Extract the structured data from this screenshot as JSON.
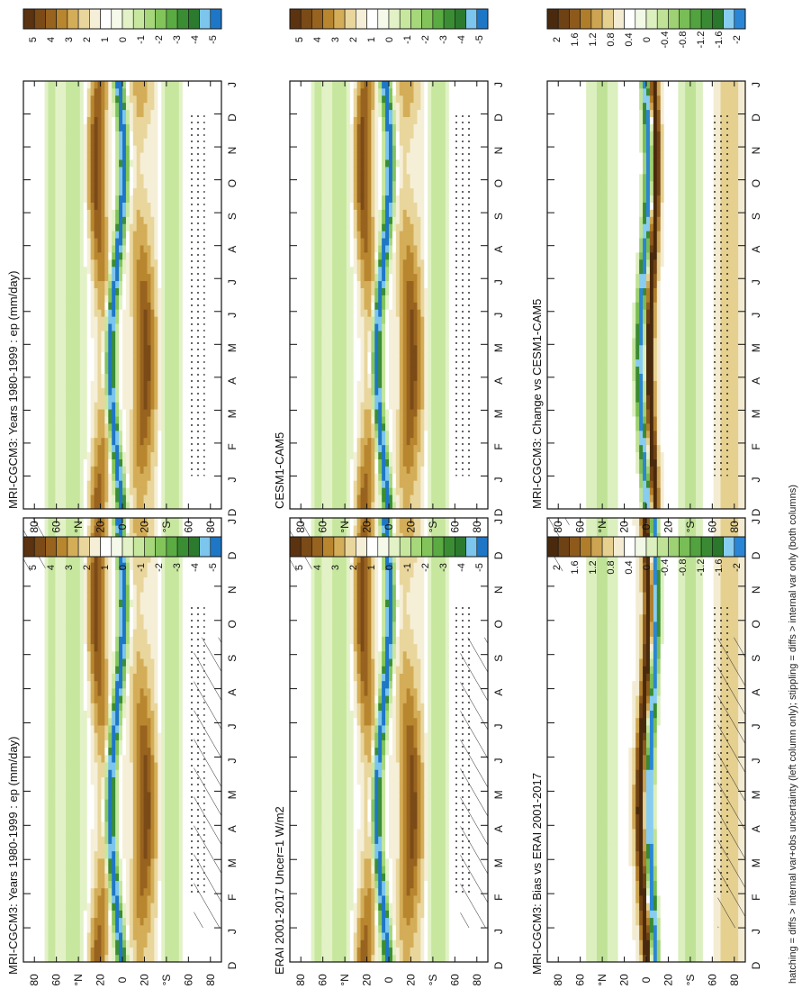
{
  "footnote": "hatching = diffs > internal var+obs uncertainty (left column only); stippling = diffs > internal var only (both columns)",
  "month_labels": [
    "D",
    "J",
    "F",
    "M",
    "A",
    "M",
    "J",
    "J",
    "A",
    "S",
    "O",
    "N",
    "D",
    "J"
  ],
  "lat_labels": [
    "80",
    "60",
    "°N",
    "20",
    "0",
    "20",
    "°S",
    "60",
    "80"
  ],
  "colorbars": {
    "field": {
      "labels": [
        "5",
        "4",
        "3",
        "2",
        "1",
        "0",
        "-1",
        "-2",
        "-3",
        "-4",
        "-5"
      ]
    },
    "diff": {
      "labels": [
        "2",
        "1.6",
        "1.2",
        "0.8",
        "0.4",
        "0",
        "-0.4",
        "-0.8",
        "-1.2",
        "-1.6",
        "-2"
      ]
    }
  },
  "panels": [
    {
      "title": "MRI-CGCM3: Years 1980-1999 : ep (mm/day)",
      "colorbar": "field"
    },
    {
      "title": "MRI-CGCM3: Years 1980-1999 : ep (mm/day)",
      "colorbar": "field"
    },
    {
      "title": "ERAI 2001-2017 Uncer=1 W/m2",
      "colorbar": "field"
    },
    {
      "title": "CESM1-CAM5",
      "colorbar": "field"
    },
    {
      "title": "MRI-CGCM3: Bias vs ERAI 2001-2017",
      "colorbar": "diff"
    },
    {
      "title": "MRI-CGCM3: Change vs CESM1-CAM5",
      "colorbar": "diff"
    }
  ],
  "chart_data": [
    {
      "type": "heatmap",
      "title": "MRI-CGCM3: Years 1980-1999 : ep (mm/day)",
      "x": "month",
      "y": "latitude",
      "xlabels": [
        "D",
        "J",
        "F",
        "M",
        "A",
        "M",
        "J",
        "J",
        "A",
        "S",
        "O",
        "N",
        "D",
        "J"
      ],
      "ylabels": [
        "80",
        "60",
        "°N",
        "20",
        "0",
        "20",
        "°S",
        "60",
        "80"
      ],
      "colorbar": [
        "5",
        "4",
        "3",
        "2",
        "1",
        "0",
        "-1",
        "-2",
        "-3",
        "-4",
        "-5"
      ]
    },
    {
      "type": "heatmap",
      "title": "MRI-CGCM3: Years 1980-1999 : ep (mm/day)",
      "x": "month",
      "y": "latitude",
      "xlabels": [
        "D",
        "J",
        "F",
        "M",
        "A",
        "M",
        "J",
        "J",
        "A",
        "S",
        "O",
        "N",
        "D",
        "J"
      ],
      "ylabels": [
        "80",
        "60",
        "°N",
        "20",
        "0",
        "20",
        "°S",
        "60",
        "80"
      ],
      "colorbar": [
        "5",
        "4",
        "3",
        "2",
        "1",
        "0",
        "-1",
        "-2",
        "-3",
        "-4",
        "-5"
      ]
    },
    {
      "type": "heatmap",
      "title": "ERAI 2001-2017 Uncer=1 W/m2",
      "x": "month",
      "y": "latitude",
      "xlabels": [
        "D",
        "J",
        "F",
        "M",
        "A",
        "M",
        "J",
        "J",
        "A",
        "S",
        "O",
        "N",
        "D",
        "J"
      ],
      "ylabels": [
        "80",
        "60",
        "°N",
        "20",
        "0",
        "20",
        "°S",
        "60",
        "80"
      ],
      "colorbar": [
        "5",
        "4",
        "3",
        "2",
        "1",
        "0",
        "-1",
        "-2",
        "-3",
        "-4",
        "-5"
      ]
    },
    {
      "type": "heatmap",
      "title": "CESM1-CAM5",
      "x": "month",
      "y": "latitude",
      "xlabels": [
        "D",
        "J",
        "F",
        "M",
        "A",
        "M",
        "J",
        "J",
        "A",
        "S",
        "O",
        "N",
        "D",
        "J"
      ],
      "ylabels": [
        "80",
        "60",
        "°N",
        "20",
        "0",
        "20",
        "°S",
        "60",
        "80"
      ],
      "colorbar": [
        "5",
        "4",
        "3",
        "2",
        "1",
        "0",
        "-1",
        "-2",
        "-3",
        "-4",
        "-5"
      ]
    },
    {
      "type": "heatmap",
      "title": "MRI-CGCM3: Bias vs ERAI 2001-2017",
      "x": "month",
      "y": "latitude",
      "xlabels": [
        "D",
        "J",
        "F",
        "M",
        "A",
        "M",
        "J",
        "J",
        "A",
        "S",
        "O",
        "N",
        "D",
        "J"
      ],
      "ylabels": [
        "80",
        "60",
        "°N",
        "20",
        "0",
        "20",
        "°S",
        "60",
        "80"
      ],
      "colorbar": [
        "2",
        "1.6",
        "1.2",
        "0.8",
        "0.4",
        "0",
        "-0.4",
        "-0.8",
        "-1.2",
        "-1.6",
        "-2"
      ]
    },
    {
      "type": "heatmap",
      "title": "MRI-CGCM3: Change vs CESM1-CAM5",
      "x": "month",
      "y": "latitude",
      "xlabels": [
        "D",
        "J",
        "F",
        "M",
        "A",
        "M",
        "J",
        "J",
        "A",
        "S",
        "O",
        "N",
        "D",
        "J"
      ],
      "ylabels": [
        "80",
        "60",
        "°N",
        "20",
        "0",
        "20",
        "°S",
        "60",
        "80"
      ],
      "colorbar": [
        "2",
        "1.6",
        "1.2",
        "0.8",
        "0.4",
        "0",
        "-0.4",
        "-0.8",
        "-1.2",
        "-1.6",
        "-2"
      ]
    }
  ]
}
